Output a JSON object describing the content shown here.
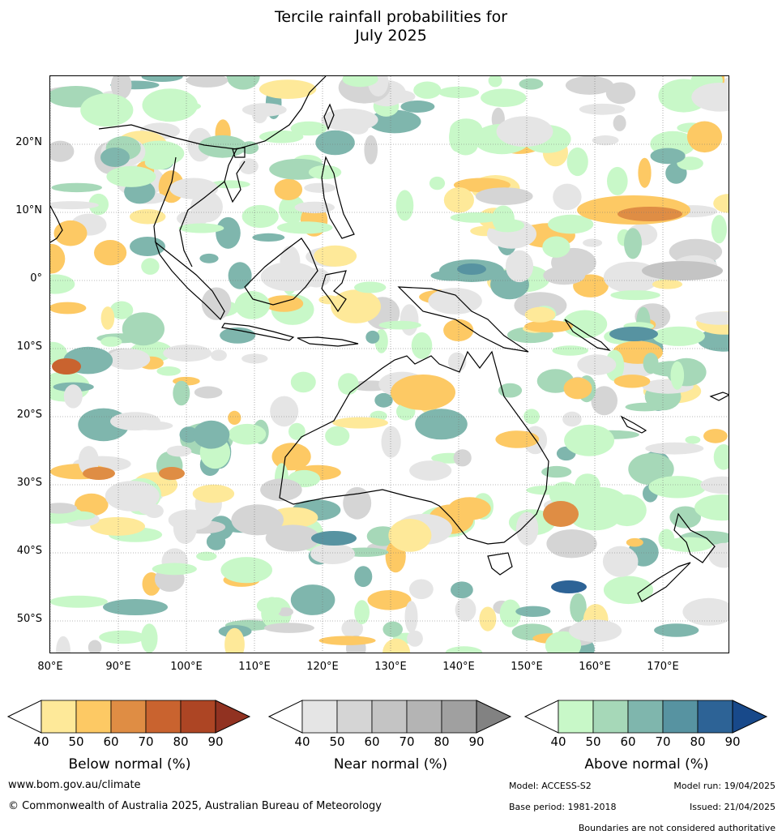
{
  "title": {
    "line1": "Tercile rainfall probabilities for",
    "line2": "July 2025"
  },
  "map": {
    "lat_labels": [
      "20°N",
      "10°N",
      "0°",
      "10°S",
      "20°S",
      "30°S",
      "40°S",
      "50°S"
    ],
    "lon_labels": [
      "80°E",
      "90°E",
      "100°E",
      "110°E",
      "120°E",
      "130°E",
      "140°E",
      "150°E",
      "160°E",
      "170°E"
    ]
  },
  "colors": {
    "below": [
      "#fee999",
      "#fdc964",
      "#df8d44",
      "#c9632f",
      "#ad4524",
      "#913221"
    ],
    "near": [
      "#e5e5e5",
      "#d5d5d5",
      "#c4c4c4",
      "#b4b4b4",
      "#a0a0a0",
      "#828282"
    ],
    "above": [
      "#c8f8c8",
      "#a6d8b8",
      "#7fb6ad",
      "#5793a1",
      "#2d6396",
      "#18498a"
    ]
  },
  "legends": [
    {
      "label": "Below normal (%)",
      "ticks": [
        "40",
        "50",
        "60",
        "70",
        "80",
        "90"
      ]
    },
    {
      "label": "Near normal (%)",
      "ticks": [
        "40",
        "50",
        "60",
        "70",
        "80",
        "90"
      ]
    },
    {
      "label": "Above normal (%)",
      "ticks": [
        "40",
        "50",
        "60",
        "70",
        "80",
        "90"
      ]
    }
  ],
  "footer": {
    "url": "www.bom.gov.au/climate",
    "copyright": "© Commonwealth of Australia 2025, Australian Bureau of Meteorology",
    "model": "Model: ACCESS-S2",
    "model_run": "Model run: 19/04/2025",
    "base_period": "Base period: 1981-2018",
    "issued": "Issued: 21/04/2025",
    "disclaimer": "Boundaries are not considered authoritative"
  }
}
